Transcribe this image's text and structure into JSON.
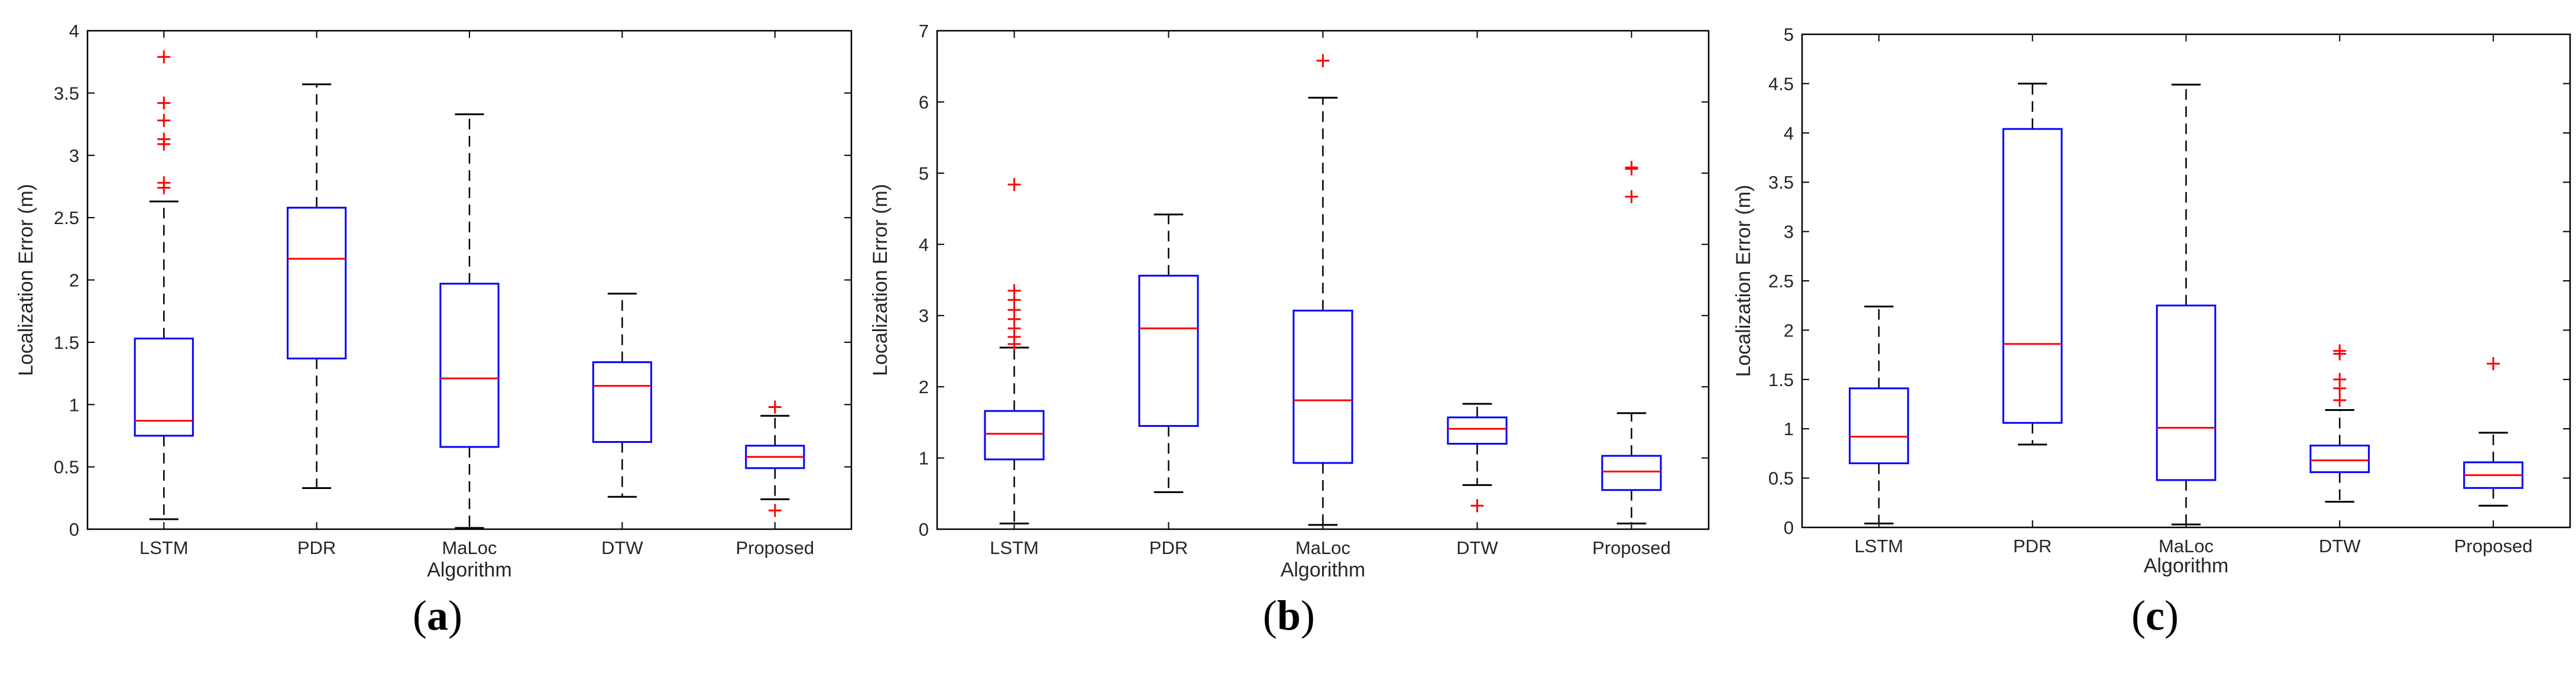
{
  "style": {
    "box_color": "#0000ff",
    "median_color": "#ff0000",
    "outlier_color": "#ff0000",
    "whisker_color": "#000000"
  },
  "chart_data": [
    {
      "type": "boxplot",
      "caption": "a",
      "xlabel": "Algorithm",
      "ylabel": "Localization Error (m)",
      "ylim": [
        0,
        4
      ],
      "yticks": [
        "0",
        "0.5",
        "1",
        "1.5",
        "2",
        "2.5",
        "3",
        "3.5",
        "4"
      ],
      "categories": [
        "LSTM",
        "PDR",
        "MaLoc",
        "DTW",
        "Proposed"
      ],
      "boxes": [
        {
          "category": "LSTM",
          "q1": 0.75,
          "median": 0.87,
          "q3": 1.53,
          "whisker_low": 0.08,
          "whisker_high": 2.63,
          "outliers": [
            3.79,
            3.42,
            3.28,
            3.13,
            3.09,
            2.78,
            2.74
          ]
        },
        {
          "category": "PDR",
          "q1": 1.37,
          "median": 2.17,
          "q3": 2.58,
          "whisker_low": 0.33,
          "whisker_high": 3.57,
          "outliers": []
        },
        {
          "category": "MaLoc",
          "q1": 0.66,
          "median": 1.21,
          "q3": 1.97,
          "whisker_low": 0.01,
          "whisker_high": 3.33,
          "outliers": []
        },
        {
          "category": "DTW",
          "q1": 0.7,
          "median": 1.15,
          "q3": 1.34,
          "whisker_low": 0.26,
          "whisker_high": 1.89,
          "outliers": []
        },
        {
          "category": "Proposed",
          "q1": 0.49,
          "median": 0.58,
          "q3": 0.67,
          "whisker_low": 0.24,
          "whisker_high": 0.91,
          "outliers": [
            0.98,
            0.15
          ]
        }
      ]
    },
    {
      "type": "boxplot",
      "caption": "b",
      "xlabel": "Algorithm",
      "ylabel": "Localization Error (m)",
      "ylim": [
        0,
        7
      ],
      "yticks": [
        "0",
        "1",
        "2",
        "3",
        "4",
        "5",
        "6",
        "7"
      ],
      "categories": [
        "LSTM",
        "PDR",
        "MaLoc",
        "DTW",
        "Proposed"
      ],
      "boxes": [
        {
          "category": "LSTM",
          "q1": 0.98,
          "median": 1.34,
          "q3": 1.66,
          "whisker_low": 0.08,
          "whisker_high": 2.55,
          "outliers": [
            4.84,
            3.35,
            3.22,
            3.08,
            2.95,
            2.82,
            2.7,
            2.6
          ]
        },
        {
          "category": "PDR",
          "q1": 1.45,
          "median": 2.82,
          "q3": 3.56,
          "whisker_low": 0.52,
          "whisker_high": 4.42,
          "outliers": []
        },
        {
          "category": "MaLoc",
          "q1": 0.93,
          "median": 1.81,
          "q3": 3.07,
          "whisker_low": 0.06,
          "whisker_high": 6.06,
          "outliers": [
            6.58
          ]
        },
        {
          "category": "DTW",
          "q1": 1.2,
          "median": 1.41,
          "q3": 1.57,
          "whisker_low": 0.62,
          "whisker_high": 1.76,
          "outliers": [
            0.33
          ]
        },
        {
          "category": "Proposed",
          "q1": 0.55,
          "median": 0.81,
          "q3": 1.03,
          "whisker_low": 0.08,
          "whisker_high": 1.63,
          "outliers": [
            5.08,
            5.06,
            4.67
          ]
        }
      ]
    },
    {
      "type": "boxplot",
      "caption": "c",
      "xlabel": "Algorithm",
      "ylabel": "Localization Error (m)",
      "ylim": [
        0,
        5
      ],
      "yticks": [
        "0",
        "0.5",
        "1",
        "1.5",
        "2",
        "2.5",
        "3",
        "3.5",
        "4",
        "4.5",
        "5"
      ],
      "categories": [
        "LSTM",
        "PDR",
        "MaLoc",
        "DTW",
        "Proposed"
      ],
      "boxes": [
        {
          "category": "LSTM",
          "q1": 0.65,
          "median": 0.92,
          "q3": 1.41,
          "whisker_low": 0.04,
          "whisker_high": 2.24,
          "outliers": []
        },
        {
          "category": "PDR",
          "q1": 1.06,
          "median": 1.86,
          "q3": 4.04,
          "whisker_low": 0.84,
          "whisker_high": 4.5,
          "outliers": []
        },
        {
          "category": "MaLoc",
          "q1": 0.48,
          "median": 1.01,
          "q3": 2.25,
          "whisker_low": 0.03,
          "whisker_high": 4.49,
          "outliers": []
        },
        {
          "category": "DTW",
          "q1": 0.56,
          "median": 0.68,
          "q3": 0.83,
          "whisker_low": 0.26,
          "whisker_high": 1.19,
          "outliers": [
            1.79,
            1.76,
            1.5,
            1.41,
            1.29
          ]
        },
        {
          "category": "Proposed",
          "q1": 0.4,
          "median": 0.53,
          "q3": 0.66,
          "whisker_low": 0.22,
          "whisker_high": 0.96,
          "outliers": [
            1.66
          ]
        }
      ]
    }
  ]
}
